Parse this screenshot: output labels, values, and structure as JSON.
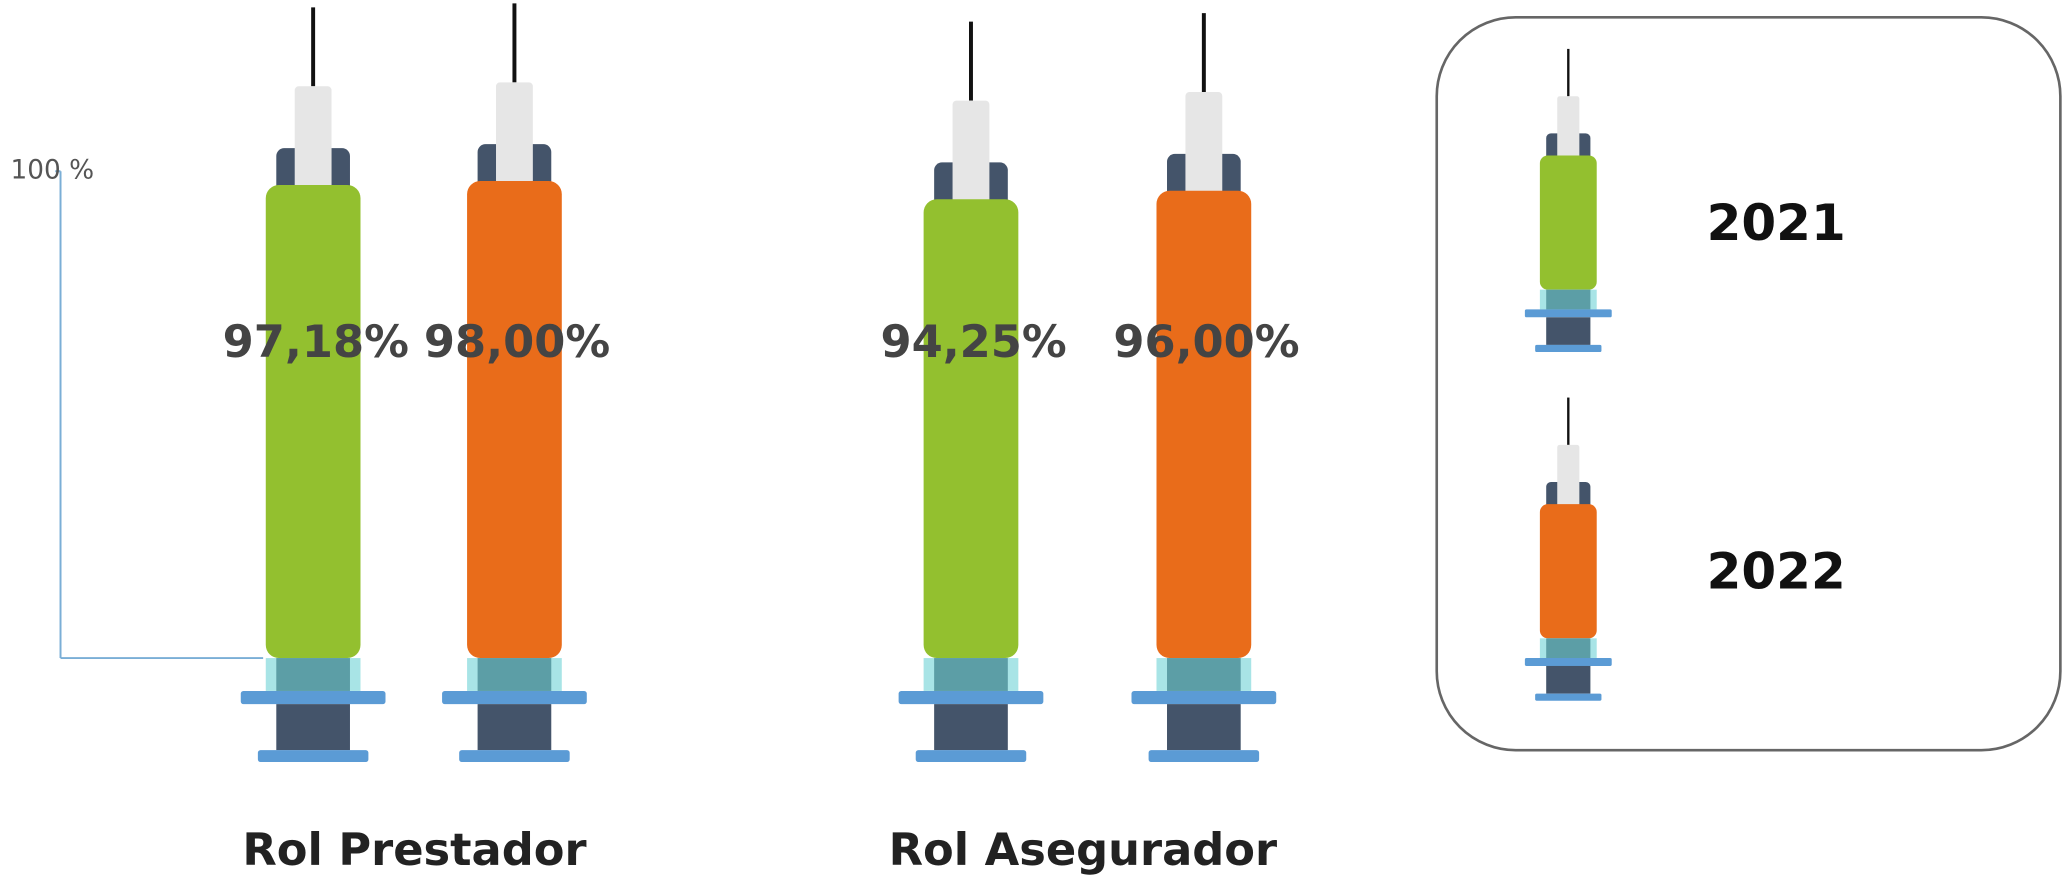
{
  "chart_data": {
    "type": "bar",
    "categories": [
      "Rol Prestador",
      "Rol Asegurador"
    ],
    "series": [
      {
        "name": "2021",
        "color": "#93c02f",
        "values": [
          97.18,
          94.25
        ],
        "value_labels": [
          "97,18%",
          "94,25%"
        ]
      },
      {
        "name": "2022",
        "color": "#e96c1a",
        "values": [
          98.0,
          96.0
        ],
        "value_labels": [
          "98,00%",
          "96,00%"
        ]
      }
    ],
    "ylim": [
      0,
      100
    ],
    "yticks": [
      {
        "value": 100,
        "label": "100 %"
      }
    ],
    "legend": "right"
  }
}
